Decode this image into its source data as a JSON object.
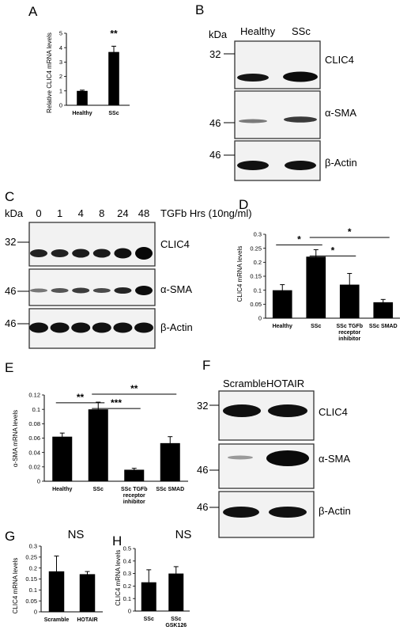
{
  "panel_a": {
    "label": "A",
    "chart_data": {
      "type": "bar",
      "categories": [
        "Healthy",
        "SSc"
      ],
      "values": [
        1.0,
        3.7
      ],
      "errors": [
        0.05,
        0.4
      ],
      "ylabel": "Relative CLIC4 mRNA levels",
      "ylim": [
        0,
        5
      ],
      "yticks": [
        "0",
        "1",
        "2",
        "3",
        "4",
        "5"
      ],
      "significance": "**"
    }
  },
  "panel_b": {
    "label": "B",
    "kda_header": "kDa",
    "lanes": [
      "Healthy",
      "SSc"
    ],
    "markers": [
      "32",
      "46",
      "46"
    ],
    "proteins": [
      "CLIC4",
      "α-SMA",
      "β-Actin"
    ]
  },
  "panel_c": {
    "label": "C",
    "kda_header": "kDa",
    "lanes": [
      "0",
      "1",
      "4",
      "8",
      "24",
      "48"
    ],
    "time_label": "TGFb Hrs (10ng/ml)",
    "markers": [
      "32",
      "46",
      "46"
    ],
    "proteins": [
      "CLIC4",
      "α-SMA",
      "β-Actin"
    ]
  },
  "panel_d": {
    "label": "D",
    "chart_data": {
      "type": "bar",
      "categories": [
        "Healthy",
        "SSc",
        "SSc TGFb receptor inhibitor",
        "SSc SMAD"
      ],
      "category_lines": [
        [
          "Healthy"
        ],
        [
          "SSc"
        ],
        [
          "SSc TGFb",
          "receptor",
          "inhibitor"
        ],
        [
          "SSc SMAD"
        ]
      ],
      "values": [
        0.1,
        0.22,
        0.12,
        0.057
      ],
      "errors": [
        0.02,
        0.025,
        0.04,
        0.01
      ],
      "ylabel": "CLIC4 mRNA levels",
      "ylim": [
        0,
        0.3
      ],
      "yticks": [
        "0",
        "0.05",
        "0.1",
        "0.15",
        "0.2",
        "0.25",
        "0.3"
      ],
      "significance": [
        "*",
        "*",
        "*"
      ]
    }
  },
  "panel_e": {
    "label": "E",
    "chart_data": {
      "type": "bar",
      "categories": [
        "Healthy",
        "SSc",
        "SSc TGFb receptor inhibitor",
        "SSc SMAD"
      ],
      "category_lines": [
        [
          "Healthy"
        ],
        [
          "SSc"
        ],
        [
          "SSc TGFb",
          "receptor",
          "inhibitor"
        ],
        [
          "SSc SMAD"
        ]
      ],
      "values": [
        0.062,
        0.1,
        0.016,
        0.053
      ],
      "errors": [
        0.005,
        0.01,
        0.002,
        0.009
      ],
      "ylabel": "α-SMA mRNA levels",
      "ylim": [
        0,
        0.12
      ],
      "yticks": [
        "0",
        "0.02",
        "0.04",
        "0.06",
        "0.08",
        "0.1",
        "0.12"
      ],
      "significance": [
        "**",
        "***",
        "**"
      ]
    }
  },
  "panel_f": {
    "label": "F",
    "lanes": [
      "Scramble",
      "HOTAIR"
    ],
    "markers": [
      "32",
      "46",
      "46"
    ],
    "proteins": [
      "CLIC4",
      "α-SMA",
      "β-Actin"
    ]
  },
  "panel_g": {
    "label": "G",
    "chart_data": {
      "type": "bar",
      "categories": [
        "Scramble",
        "HOTAIR"
      ],
      "values": [
        0.185,
        0.172
      ],
      "errors": [
        0.07,
        0.012
      ],
      "ylabel": "CLIC4 mRNA levels",
      "ylim": [
        0,
        0.3
      ],
      "yticks": [
        "0",
        "0.05",
        "0.1",
        "0.15",
        "0.2",
        "0.25",
        "0.3"
      ],
      "significance": "NS"
    }
  },
  "panel_h": {
    "label": "H",
    "chart_data": {
      "type": "bar",
      "categories": [
        "SSc",
        "SSc GSK126"
      ],
      "category_lines": [
        [
          "SSc"
        ],
        [
          "SSc",
          "GSK126"
        ]
      ],
      "values": [
        0.23,
        0.3
      ],
      "errors": [
        0.1,
        0.055
      ],
      "ylabel": "CLIC4 mRNA levels",
      "ylim": [
        0,
        0.5
      ],
      "yticks": [
        "0",
        "0.1",
        "0.2",
        "0.3",
        "0.4",
        "0.5"
      ],
      "significance": "NS"
    }
  }
}
